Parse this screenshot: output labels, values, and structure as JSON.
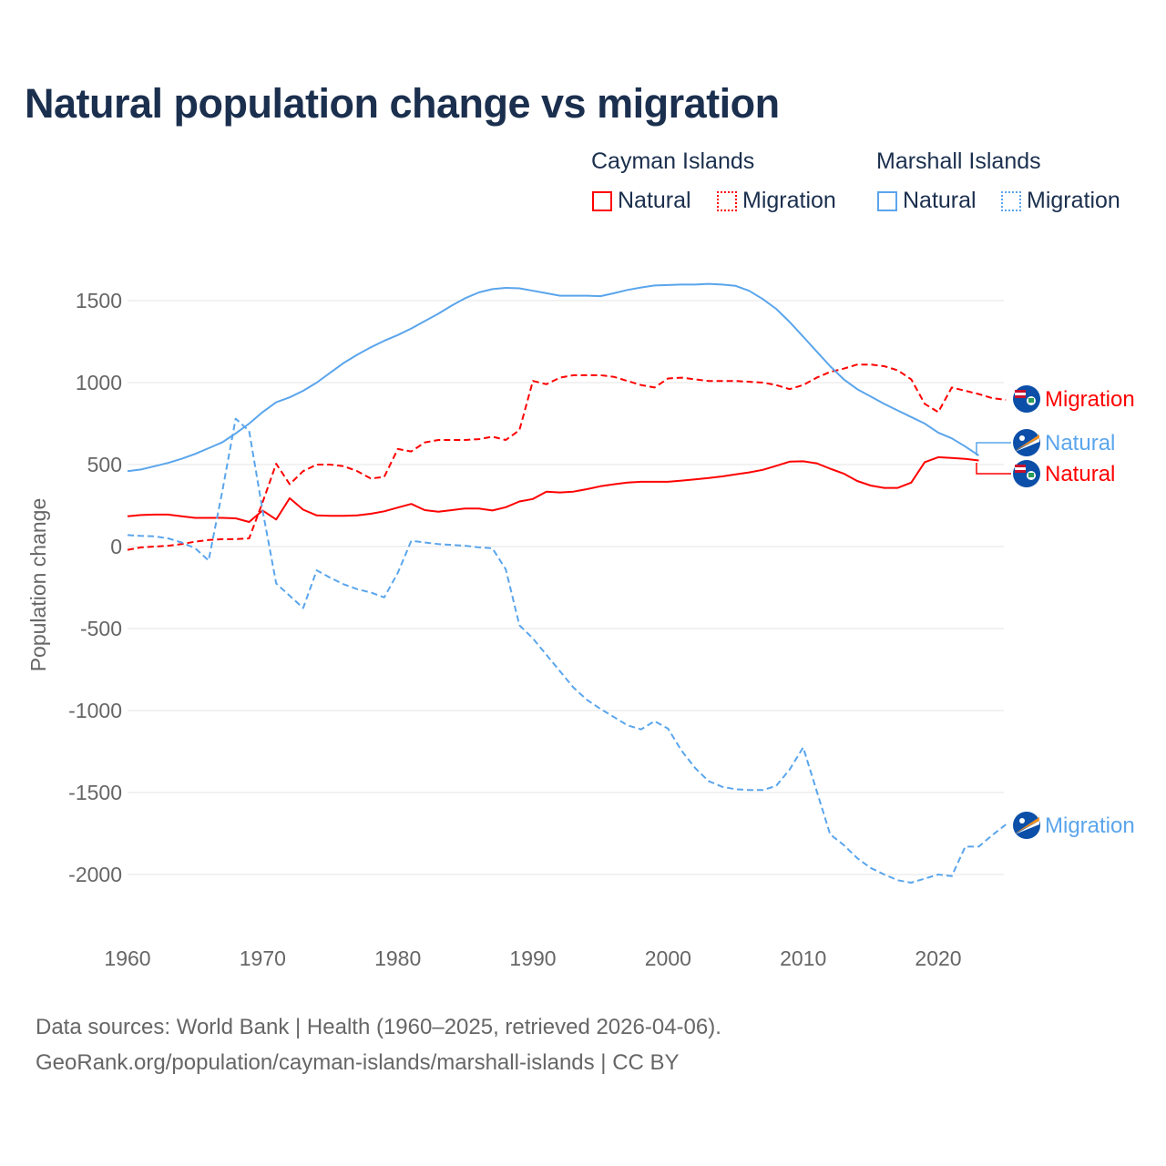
{
  "chart_data": {
    "type": "line",
    "title": "Natural population change vs migration",
    "xlabel": "",
    "ylabel": "Population change",
    "xlim": [
      1960,
      2025
    ],
    "ylim": [
      -2300,
      1700
    ],
    "x_ticks": [
      1960,
      1970,
      1980,
      1990,
      2000,
      2010,
      2020
    ],
    "y_ticks": [
      1500,
      1000,
      500,
      0,
      -500,
      -1000,
      -1500,
      -2000
    ],
    "grid": true,
    "legend_groups": [
      {
        "country": "Cayman Islands",
        "items": [
          "Natural",
          "Migration"
        ]
      },
      {
        "country": "Marshall Islands",
        "items": [
          "Natural",
          "Migration"
        ]
      }
    ],
    "series": [
      {
        "name": "Natural",
        "country": "Cayman Islands",
        "color": "#ff0000",
        "dash": "solid",
        "start": 1960,
        "values": [
          185,
          192,
          195,
          195,
          185,
          175,
          175,
          175,
          172,
          150,
          220,
          165,
          295,
          225,
          190,
          188,
          188,
          190,
          200,
          215,
          238,
          260,
          222,
          212,
          222,
          232,
          232,
          220,
          240,
          275,
          290,
          335,
          330,
          335,
          350,
          368,
          380,
          390,
          395,
          395,
          395,
          402,
          410,
          418,
          428,
          440,
          452,
          468,
          492,
          518,
          520,
          508,
          475,
          445,
          400,
          372,
          358,
          358,
          390,
          515,
          545,
          540,
          535,
          525
        ]
      },
      {
        "name": "Migration",
        "country": "Cayman Islands",
        "color": "#ff0000",
        "dash": "dashed",
        "start": 1960,
        "values": [
          -20,
          -5,
          0,
          5,
          15,
          30,
          40,
          45,
          45,
          50,
          270,
          505,
          380,
          460,
          500,
          500,
          490,
          460,
          415,
          425,
          595,
          580,
          635,
          650,
          650,
          650,
          655,
          670,
          650,
          710,
          1010,
          990,
          1030,
          1045,
          1045,
          1045,
          1035,
          1010,
          985,
          970,
          1025,
          1030,
          1020,
          1010,
          1010,
          1010,
          1005,
          1000,
          985,
          960,
          985,
          1030,
          1065,
          1085,
          1110,
          1110,
          1100,
          1075,
          1020,
          870,
          820,
          970,
          950,
          930,
          905,
          895
        ]
      },
      {
        "name": "Natural",
        "country": "Marshall Islands",
        "color": "#5aa5ec",
        "dash": "solid",
        "start": 1960,
        "values": [
          460,
          470,
          490,
          510,
          535,
          565,
          600,
          635,
          690,
          750,
          820,
          880,
          910,
          950,
          1000,
          1060,
          1120,
          1170,
          1215,
          1255,
          1290,
          1330,
          1375,
          1420,
          1470,
          1515,
          1550,
          1570,
          1578,
          1575,
          1560,
          1545,
          1530,
          1530,
          1530,
          1527,
          1545,
          1565,
          1580,
          1592,
          1595,
          1598,
          1598,
          1602,
          1598,
          1590,
          1560,
          1510,
          1450,
          1370,
          1280,
          1190,
          1100,
          1020,
          960,
          915,
          870,
          830,
          790,
          750,
          695,
          660,
          610,
          555
        ]
      },
      {
        "name": "Migration",
        "country": "Marshall Islands",
        "color": "#5aa5ec",
        "dash": "dashed",
        "start": 1960,
        "values": [
          70,
          65,
          62,
          50,
          25,
          -10,
          -85,
          330,
          780,
          705,
          220,
          -225,
          -300,
          -375,
          -145,
          -190,
          -230,
          -260,
          -280,
          -310,
          -160,
          35,
          25,
          15,
          10,
          5,
          -5,
          -10,
          -140,
          -480,
          -560,
          -660,
          -760,
          -860,
          -935,
          -990,
          -1040,
          -1090,
          -1115,
          -1065,
          -1110,
          -1245,
          -1350,
          -1430,
          -1465,
          -1480,
          -1485,
          -1485,
          -1460,
          -1360,
          -1225,
          -1490,
          -1755,
          -1820,
          -1900,
          -1960,
          -2000,
          -2035,
          -2050,
          -2025,
          -2000,
          -2010,
          -1830,
          -1830,
          -1760,
          -1695
        ]
      }
    ]
  },
  "legend": {
    "group1": "Cayman Islands",
    "group2": "Marshall Islands",
    "natural": "Natural",
    "migration": "Migration"
  },
  "end_labels": {
    "cay_mig": "Migration",
    "mar_nat": "Natural",
    "cay_nat": "Natural",
    "mar_mig": "Migration"
  },
  "source": {
    "line1": "Data sources: World Bank | Health (1960–2025, retrieved 2026-04-06).",
    "line2": "GeoRank.org/population/cayman-islands/marshall-islands | CC BY"
  }
}
